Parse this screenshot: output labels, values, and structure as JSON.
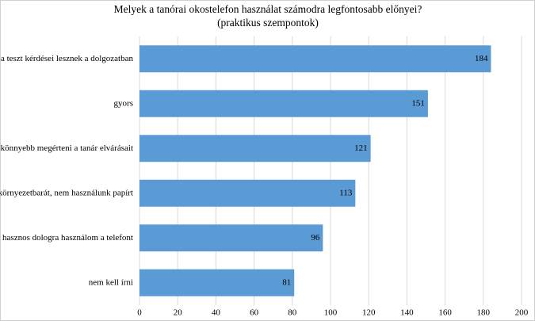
{
  "chart_data": {
    "type": "bar",
    "orientation": "horizontal",
    "title": "Melyek a tanórai okostelefon használat számodra legfontosabb előnyei?",
    "subtitle": "(praktikus szempontok)",
    "categories": [
      "a teszt kérdései lesznek a dolgozatban",
      "gyors",
      "könnyebb megérteni a tanár elvárásait",
      "környezetbarát, nem használunk papírt",
      "hasznos dologra használom a telefont",
      "nem kell írni"
    ],
    "values": [
      184,
      151,
      121,
      113,
      96,
      81
    ],
    "color": "#5b9bd5",
    "xlim": [
      0,
      200
    ],
    "xticks": [
      0,
      20,
      40,
      60,
      80,
      100,
      120,
      140,
      160,
      180,
      200
    ],
    "grid": true,
    "data_labels": true
  }
}
